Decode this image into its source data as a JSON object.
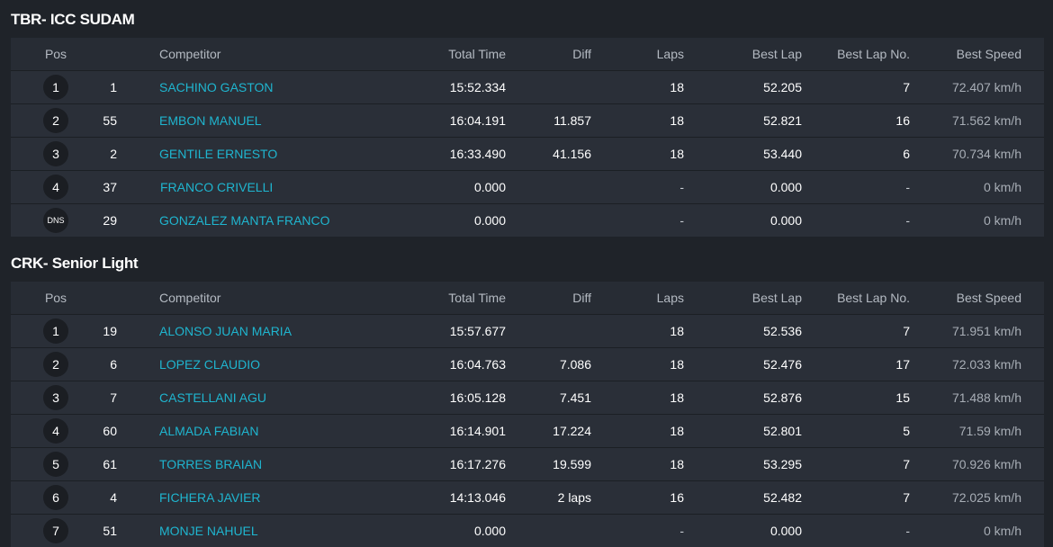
{
  "headers": {
    "pos": "Pos",
    "competitor": "Competitor",
    "total_time": "Total Time",
    "diff": "Diff",
    "laps": "Laps",
    "best_lap": "Best Lap",
    "best_lap_no": "Best Lap No.",
    "best_speed": "Best Speed"
  },
  "sections": [
    {
      "title": "TBR- ICC SUDAM",
      "rows": [
        {
          "pos": "1",
          "num": "1",
          "competitor": "SACHINO GASTON",
          "total_time": "15:52.334",
          "diff": "",
          "laps": "18",
          "best_lap": "52.205",
          "best_lap_no": "7",
          "best_speed": "72.407 km/h"
        },
        {
          "pos": "2",
          "num": "55",
          "competitor": "EMBON MANUEL",
          "total_time": "16:04.191",
          "diff": "11.857",
          "laps": "18",
          "best_lap": "52.821",
          "best_lap_no": "16",
          "best_speed": "71.562 km/h"
        },
        {
          "pos": "3",
          "num": "2",
          "competitor": "GENTILE ERNESTO",
          "total_time": "16:33.490",
          "diff": "41.156",
          "laps": "18",
          "best_lap": "53.440",
          "best_lap_no": "6",
          "best_speed": "70.734 km/h"
        },
        {
          "pos": "4",
          "num": "37",
          "competitor": "FRANCO CRIVELLI",
          "total_time": "0.000",
          "diff": "",
          "laps": "-",
          "best_lap": "0.000",
          "best_lap_no": "-",
          "best_speed": "0 km/h"
        },
        {
          "pos": "DNS",
          "num": "29",
          "competitor": "GONZALEZ MANTA FRANCO",
          "total_time": "0.000",
          "diff": "",
          "laps": "-",
          "best_lap": "0.000",
          "best_lap_no": "-",
          "best_speed": "0 km/h"
        }
      ]
    },
    {
      "title": "CRK- Senior Light",
      "rows": [
        {
          "pos": "1",
          "num": "19",
          "competitor": "ALONSO JUAN MARIA",
          "total_time": "15:57.677",
          "diff": "",
          "laps": "18",
          "best_lap": "52.536",
          "best_lap_no": "7",
          "best_speed": "71.951 km/h"
        },
        {
          "pos": "2",
          "num": "6",
          "competitor": "LOPEZ CLAUDIO",
          "total_time": "16:04.763",
          "diff": "7.086",
          "laps": "18",
          "best_lap": "52.476",
          "best_lap_no": "17",
          "best_speed": "72.033 km/h"
        },
        {
          "pos": "3",
          "num": "7",
          "competitor": "CASTELLANI AGU",
          "total_time": "16:05.128",
          "diff": "7.451",
          "laps": "18",
          "best_lap": "52.876",
          "best_lap_no": "15",
          "best_speed": "71.488 km/h"
        },
        {
          "pos": "4",
          "num": "60",
          "competitor": "ALMADA FABIAN",
          "total_time": "16:14.901",
          "diff": "17.224",
          "laps": "18",
          "best_lap": "52.801",
          "best_lap_no": "5",
          "best_speed": "71.59 km/h"
        },
        {
          "pos": "5",
          "num": "61",
          "competitor": "TORRES BRAIAN",
          "total_time": "16:17.276",
          "diff": "19.599",
          "laps": "18",
          "best_lap": "53.295",
          "best_lap_no": "7",
          "best_speed": "70.926 km/h"
        },
        {
          "pos": "6",
          "num": "4",
          "competitor": "FICHERA JAVIER",
          "total_time": "14:13.046",
          "diff": "2 laps",
          "laps": "16",
          "best_lap": "52.482",
          "best_lap_no": "7",
          "best_speed": "72.025 km/h"
        },
        {
          "pos": "7",
          "num": "51",
          "competitor": "MONJE NAHUEL",
          "total_time": "0.000",
          "diff": "",
          "laps": "-",
          "best_lap": "0.000",
          "best_lap_no": "-",
          "best_speed": "0 km/h"
        }
      ]
    }
  ]
}
